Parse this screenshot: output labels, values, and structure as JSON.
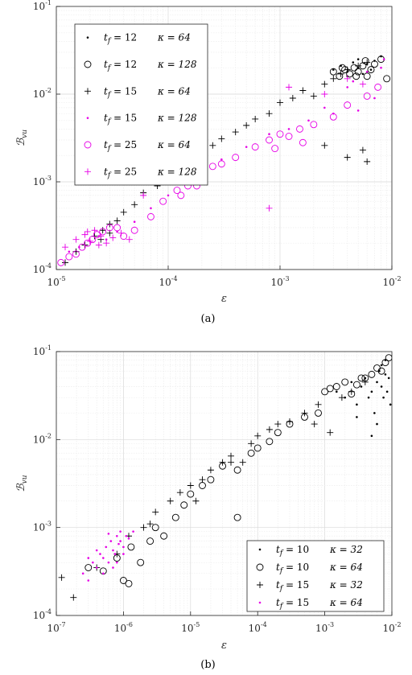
{
  "chart_data": [
    {
      "type": "scatter",
      "panel_label": "(a)",
      "xlabel": "ε",
      "ylabel": "ℬvu",
      "ylabel_main": "ℬ",
      "ylabel_sub": "vu",
      "x_scale": "log",
      "y_scale": "log",
      "xlim": [
        1e-05,
        0.01
      ],
      "ylim": [
        0.0001,
        0.1
      ],
      "xticks": [
        {
          "base": "10",
          "exp": "-5"
        },
        {
          "base": "10",
          "exp": "-4"
        },
        {
          "base": "10",
          "exp": "-3"
        },
        {
          "base": "10",
          "exp": "-2"
        }
      ],
      "yticks": [
        {
          "base": "10",
          "exp": "-4"
        },
        {
          "base": "10",
          "exp": "-3"
        },
        {
          "base": "10",
          "exp": "-2"
        },
        {
          "base": "10",
          "exp": "-1"
        }
      ],
      "grid": true,
      "legend_position": "top-left",
      "colors": {
        "black": "#000000",
        "magenta": "#e600e6"
      },
      "series": [
        {
          "name": "t_f = 12   κ = 64",
          "tf": "12",
          "kappa": "64",
          "marker": "dot",
          "color": "#000000",
          "x": [
            0.003,
            0.0035,
            0.004,
            0.0045,
            0.005,
            0.0055,
            0.006,
            0.0065,
            0.007,
            0.008,
            0.004,
            0.005
          ],
          "y": [
            0.019,
            0.021,
            0.018,
            0.023,
            0.02,
            0.017,
            0.022,
            0.019,
            0.024,
            0.027,
            0.016,
            0.025
          ]
        },
        {
          "name": "t_f = 12   κ = 128",
          "tf": "12",
          "kappa": "128",
          "marker": "circle",
          "color": "#000000",
          "x": [
            0.003,
            0.0034,
            0.0038,
            0.0042,
            0.0046,
            0.005,
            0.0055,
            0.006,
            0.0065,
            0.007,
            0.008,
            0.009,
            0.0036,
            0.0048,
            0.0058
          ],
          "y": [
            0.018,
            0.016,
            0.019,
            0.017,
            0.02,
            0.018,
            0.021,
            0.016,
            0.019,
            0.022,
            0.025,
            0.015,
            0.02,
            0.016,
            0.024
          ]
        },
        {
          "name": "t_f = 15   κ = 64",
          "tf": "15",
          "kappa": "64",
          "marker": "plus",
          "color": "#000000",
          "x": [
            1.2e-05,
            1.5e-05,
            1.8e-05,
            2.2e-05,
            2.6e-05,
            3e-05,
            3.5e-05,
            4e-05,
            5e-05,
            6e-05,
            8e-05,
            0.0001,
            0.00013,
            0.00016,
            0.0002,
            0.00025,
            0.0003,
            0.0004,
            0.0005,
            0.0006,
            0.0008,
            0.001,
            0.0013,
            0.0016,
            0.002,
            0.0025,
            0.003,
            0.0035,
            0.004,
            0.005,
            0.006,
            0.004,
            0.006,
            0.0025,
            0.0055,
            3e-05,
            2.5e-05
          ],
          "y": [
            0.00012,
            0.00016,
            0.00019,
            0.00024,
            0.00028,
            0.00033,
            0.00036,
            0.00045,
            0.00055,
            0.00075,
            0.0009,
            0.0013,
            0.0016,
            0.0019,
            0.0022,
            0.0026,
            0.0031,
            0.0037,
            0.0044,
            0.0052,
            0.006,
            0.008,
            0.009,
            0.011,
            0.0095,
            0.013,
            0.015,
            0.017,
            0.019,
            0.021,
            0.023,
            0.0019,
            0.0017,
            0.0026,
            0.0023,
            0.00026,
            0.00022
          ]
        },
        {
          "name": "t_f = 15   κ = 128",
          "tf": "15",
          "kappa": "128",
          "marker": "dot",
          "color": "#e600e6",
          "x": [
            1.3e-05,
            1.6e-05,
            2e-05,
            2.4e-05,
            2.8e-05,
            3.5e-05,
            5e-05,
            7e-05,
            0.0001,
            0.00015,
            0.0002,
            0.0003,
            0.0005,
            0.0008,
            0.0012,
            0.0018,
            0.0025,
            0.004,
            0.006,
            0.0085,
            0.003,
            0.005,
            0.007,
            0.008,
            0.0045
          ],
          "y": [
            0.00016,
            0.00018,
            0.00021,
            0.00024,
            0.00022,
            0.00027,
            0.00035,
            0.0005,
            0.0007,
            0.001,
            0.0013,
            0.0018,
            0.0025,
            0.0035,
            0.004,
            0.005,
            0.007,
            0.012,
            0.018,
            0.025,
            0.006,
            0.0065,
            0.009,
            0.02,
            0.014
          ]
        },
        {
          "name": "t_f = 25   κ = 64",
          "tf": "25",
          "kappa": "64",
          "marker": "circle",
          "color": "#e600e6",
          "x": [
            1.1e-05,
            1.3e-05,
            1.5e-05,
            1.7e-05,
            1.9e-05,
            2.1e-05,
            2.3e-05,
            2.6e-05,
            3e-05,
            3.5e-05,
            4e-05,
            5e-05,
            7e-05,
            9e-05,
            0.00012,
            0.00015,
            0.0002,
            0.00025,
            0.0003,
            0.0004,
            0.0006,
            0.0008,
            0.001,
            0.0015,
            0.002,
            0.003,
            0.004,
            0.006,
            0.0075,
            0.0009,
            0.0012,
            0.0016,
            0.00018,
            0.00013
          ],
          "y": [
            0.00012,
            0.00014,
            0.00015,
            0.00018,
            0.0002,
            0.00022,
            0.00025,
            0.00027,
            0.0003,
            0.0003,
            0.00024,
            0.00028,
            0.0004,
            0.0006,
            0.0008,
            0.0009,
            0.0011,
            0.0015,
            0.0016,
            0.0019,
            0.0025,
            0.003,
            0.0035,
            0.004,
            0.0045,
            0.0055,
            0.0075,
            0.0095,
            0.012,
            0.0024,
            0.0033,
            0.0028,
            0.0009,
            0.0007
          ]
        },
        {
          "name": "t_f = 25   κ = 128",
          "tf": "25",
          "kappa": "128",
          "marker": "plus",
          "color": "#e600e6",
          "x": [
            1.2e-05,
            1.5e-05,
            1.8e-05,
            2e-05,
            2.2e-05,
            2.5e-05,
            2.8e-05,
            3.2e-05,
            3.8e-05,
            4.5e-05,
            6e-05,
            0.0008,
            0.0012,
            0.0025,
            0.004,
            0.0055,
            1.9e-05,
            2.4e-05
          ],
          "y": [
            0.00018,
            0.00022,
            0.00025,
            0.00021,
            0.00028,
            0.00024,
            0.0002,
            0.00023,
            0.00026,
            0.00022,
            0.0007,
            0.0005,
            0.012,
            0.01,
            0.015,
            0.013,
            0.00027,
            0.00019
          ]
        }
      ]
    },
    {
      "type": "scatter",
      "panel_label": "(b)",
      "xlabel": "ε",
      "ylabel": "ℬvu",
      "ylabel_main": "ℬ",
      "ylabel_sub": "vu",
      "x_scale": "log",
      "y_scale": "log",
      "xlim": [
        1e-07,
        0.01
      ],
      "ylim": [
        0.0001,
        0.1
      ],
      "xticks": [
        {
          "base": "10",
          "exp": "-7"
        },
        {
          "base": "10",
          "exp": "-6"
        },
        {
          "base": "10",
          "exp": "-5"
        },
        {
          "base": "10",
          "exp": "-4"
        },
        {
          "base": "10",
          "exp": "-3"
        },
        {
          "base": "10",
          "exp": "-2"
        }
      ],
      "yticks": [
        {
          "base": "10",
          "exp": "-4"
        },
        {
          "base": "10",
          "exp": "-3"
        },
        {
          "base": "10",
          "exp": "-2"
        },
        {
          "base": "10",
          "exp": "-1"
        }
      ],
      "grid": true,
      "legend_position": "bottom-right",
      "series": [
        {
          "name": "t_f = 10   κ = 32",
          "tf": "10",
          "kappa": "32",
          "marker": "dot",
          "color": "#000000",
          "x": [
            0.0015,
            0.002,
            0.0025,
            0.003,
            0.0035,
            0.004,
            0.0045,
            0.005,
            0.0055,
            0.006,
            0.0065,
            0.007,
            0.0075,
            0.008,
            0.0085,
            0.009,
            0.0095,
            0.005,
            0.006,
            0.007,
            0.003,
            0.008
          ],
          "y": [
            0.035,
            0.03,
            0.045,
            0.025,
            0.04,
            0.05,
            0.03,
            0.035,
            0.02,
            0.045,
            0.06,
            0.04,
            0.03,
            0.055,
            0.035,
            0.05,
            0.025,
            0.011,
            0.015,
            0.07,
            0.018,
            0.08
          ]
        },
        {
          "name": "t_f = 10   κ = 64",
          "tf": "10",
          "kappa": "64",
          "marker": "circle",
          "color": "#000000",
          "x": [
            3e-07,
            5e-07,
            8e-07,
            1e-06,
            1.3e-06,
            1.8e-06,
            2.5e-06,
            3e-06,
            4e-06,
            6e-06,
            8e-06,
            1e-05,
            1.5e-05,
            2e-05,
            3e-05,
            5e-05,
            8e-05,
            0.0001,
            0.00015,
            0.0002,
            0.0003,
            0.0005,
            0.0008,
            0.001,
            0.0015,
            0.002,
            0.003,
            0.004,
            0.005,
            0.006,
            0.007,
            0.008,
            0.009,
            0.0012,
            0.0025,
            0.0035,
            5e-05,
            1.2e-06
          ],
          "y": [
            0.00035,
            0.00032,
            0.00045,
            0.00025,
            0.0006,
            0.0004,
            0.0007,
            0.001,
            0.0008,
            0.0013,
            0.0018,
            0.0024,
            0.003,
            0.0035,
            0.005,
            0.0045,
            0.007,
            0.008,
            0.0095,
            0.012,
            0.015,
            0.018,
            0.02,
            0.035,
            0.04,
            0.045,
            0.042,
            0.05,
            0.055,
            0.065,
            0.06,
            0.075,
            0.085,
            0.038,
            0.033,
            0.05,
            0.0013,
            0.00023
          ]
        },
        {
          "name": "t_f = 15   κ = 32",
          "tf": "15",
          "kappa": "32",
          "marker": "plus",
          "color": "#000000",
          "x": [
            1.2e-07,
            1.8e-07,
            4e-07,
            8e-07,
            1.2e-06,
            2e-06,
            3e-06,
            5e-06,
            7e-06,
            1e-05,
            1.5e-05,
            2e-05,
            3e-05,
            4e-05,
            6e-05,
            8e-05,
            0.0001,
            0.00015,
            0.0002,
            0.0003,
            0.0005,
            0.0008,
            0.0012,
            0.0018,
            0.0025,
            0.004,
            2.5e-06,
            1.2e-05,
            4e-05,
            0.0007
          ],
          "y": [
            0.00027,
            0.00016,
            0.00035,
            0.0005,
            0.0008,
            0.001,
            0.0015,
            0.002,
            0.0025,
            0.003,
            0.0035,
            0.0045,
            0.0055,
            0.0065,
            0.0055,
            0.009,
            0.011,
            0.013,
            0.015,
            0.016,
            0.02,
            0.025,
            0.012,
            0.03,
            0.035,
            0.045,
            0.0011,
            0.002,
            0.0055,
            0.015
          ]
        },
        {
          "name": "t_f = 15   κ = 64",
          "tf": "15",
          "kappa": "64",
          "marker": "dot",
          "color": "#e600e6",
          "x": [
            2.5e-07,
            3e-07,
            3.5e-07,
            4e-07,
            4.5e-07,
            5e-07,
            5.5e-07,
            6e-07,
            6.5e-07,
            7e-07,
            7.5e-07,
            8e-07,
            8.5e-07,
            9e-07,
            1e-06,
            1.1e-06,
            1.2e-06,
            1.4e-06,
            3e-07,
            4e-07,
            5e-07,
            6e-07,
            7e-07,
            8e-07,
            9e-07,
            1e-06
          ],
          "y": [
            0.0003,
            0.00025,
            0.0004,
            0.00035,
            0.0005,
            0.00045,
            0.0006,
            0.0004,
            0.0007,
            0.00055,
            0.0005,
            0.0008,
            0.00065,
            0.0009,
            0.0006,
            0.0008,
            0.00075,
            0.0009,
            0.00045,
            0.00055,
            0.0003,
            0.00085,
            0.00035,
            0.0004,
            0.0007,
            0.0005
          ]
        }
      ]
    }
  ]
}
